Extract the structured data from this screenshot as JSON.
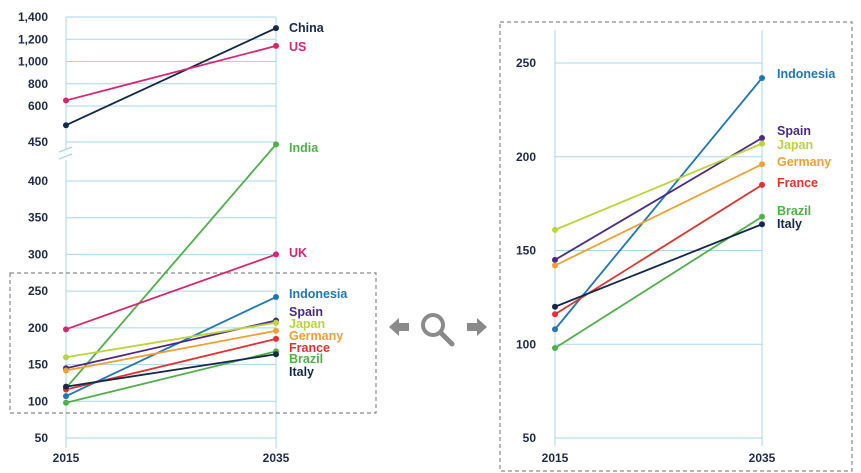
{
  "chart_data": [
    {
      "type": "line",
      "x": [
        "2015",
        "2035"
      ],
      "ytick_labels": [
        "1,400",
        "1,200",
        "1,000",
        "800",
        "600",
        "450",
        "400",
        "350",
        "300",
        "250",
        "200",
        "150",
        "100",
        "50"
      ],
      "series": [
        {
          "name": "China",
          "values": [
            520,
            1300
          ],
          "color": "#13294b"
        },
        {
          "name": "US",
          "values": [
            650,
            1140
          ],
          "color": "#d6266f"
        },
        {
          "name": "India",
          "values": [
            118,
            440
          ],
          "color": "#4fb04a"
        },
        {
          "name": "UK",
          "values": [
            198,
            300
          ],
          "color": "#d6266f"
        },
        {
          "name": "Indonesia",
          "values": [
            107,
            242
          ],
          "color": "#1f77b4"
        },
        {
          "name": "Spain",
          "values": [
            145,
            210
          ],
          "color": "#4b2a86"
        },
        {
          "name": "Japan",
          "values": [
            160,
            207
          ],
          "color": "#b9d53b"
        },
        {
          "name": "Germany",
          "values": [
            142,
            196
          ],
          "color": "#f0a030"
        },
        {
          "name": "France",
          "values": [
            116,
            185
          ],
          "color": "#e2312f"
        },
        {
          "name": "Brazil",
          "values": [
            98,
            168
          ],
          "color": "#4fb04a"
        },
        {
          "name": "Italy",
          "values": [
            120,
            164
          ],
          "color": "#13294b"
        }
      ]
    },
    {
      "type": "line",
      "x": [
        "2015",
        "2035"
      ],
      "ylim": [
        50,
        250
      ],
      "ytick_labels": [
        "250",
        "200",
        "150",
        "100",
        "50"
      ],
      "series": [
        {
          "name": "Indonesia",
          "values": [
            108,
            242
          ],
          "color": "#1f77b4"
        },
        {
          "name": "Spain",
          "values": [
            145,
            210
          ],
          "color": "#4b2a86"
        },
        {
          "name": "Japan",
          "values": [
            161,
            207
          ],
          "color": "#b9d53b"
        },
        {
          "name": "Germany",
          "values": [
            142,
            196
          ],
          "color": "#f0a030"
        },
        {
          "name": "France",
          "values": [
            116,
            185
          ],
          "color": "#e2312f"
        },
        {
          "name": "Brazil",
          "values": [
            98,
            168
          ],
          "color": "#4fb04a"
        },
        {
          "name": "Italy",
          "values": [
            120,
            164
          ],
          "color": "#13294b"
        }
      ]
    }
  ],
  "zoom_widget": {
    "icon": "magnifier-icon",
    "left_arrow_icon": "arrow-left-icon",
    "right_arrow_icon": "arrow-right-icon",
    "color": "#8a8a8a"
  }
}
